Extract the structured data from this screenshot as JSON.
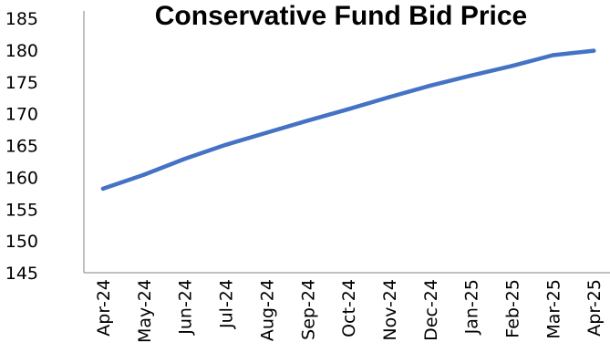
{
  "chart_data": {
    "type": "line",
    "title": "Conservative Fund Bid Price",
    "xlabel": "",
    "ylabel": "",
    "categories": [
      "Apr-24",
      "May-24",
      "Jun-24",
      "Jul-24",
      "Aug-24",
      "Sep-24",
      "Oct-24",
      "Nov-24",
      "Dec-24",
      "Jan-25",
      "Feb-25",
      "Mar-25",
      "Apr-25"
    ],
    "series": [
      {
        "values": [
          158.2,
          160.4,
          162.9,
          165.1,
          167.0,
          168.9,
          170.7,
          172.6,
          174.4,
          176.0,
          177.5,
          179.2,
          179.9
        ]
      }
    ],
    "ylim": [
      145,
      185
    ],
    "yticks": [
      145,
      150,
      155,
      160,
      165,
      170,
      175,
      180,
      185
    ],
    "grid": false,
    "legend": "none",
    "line_color": "#4472C4",
    "axis_color": "#808080"
  }
}
